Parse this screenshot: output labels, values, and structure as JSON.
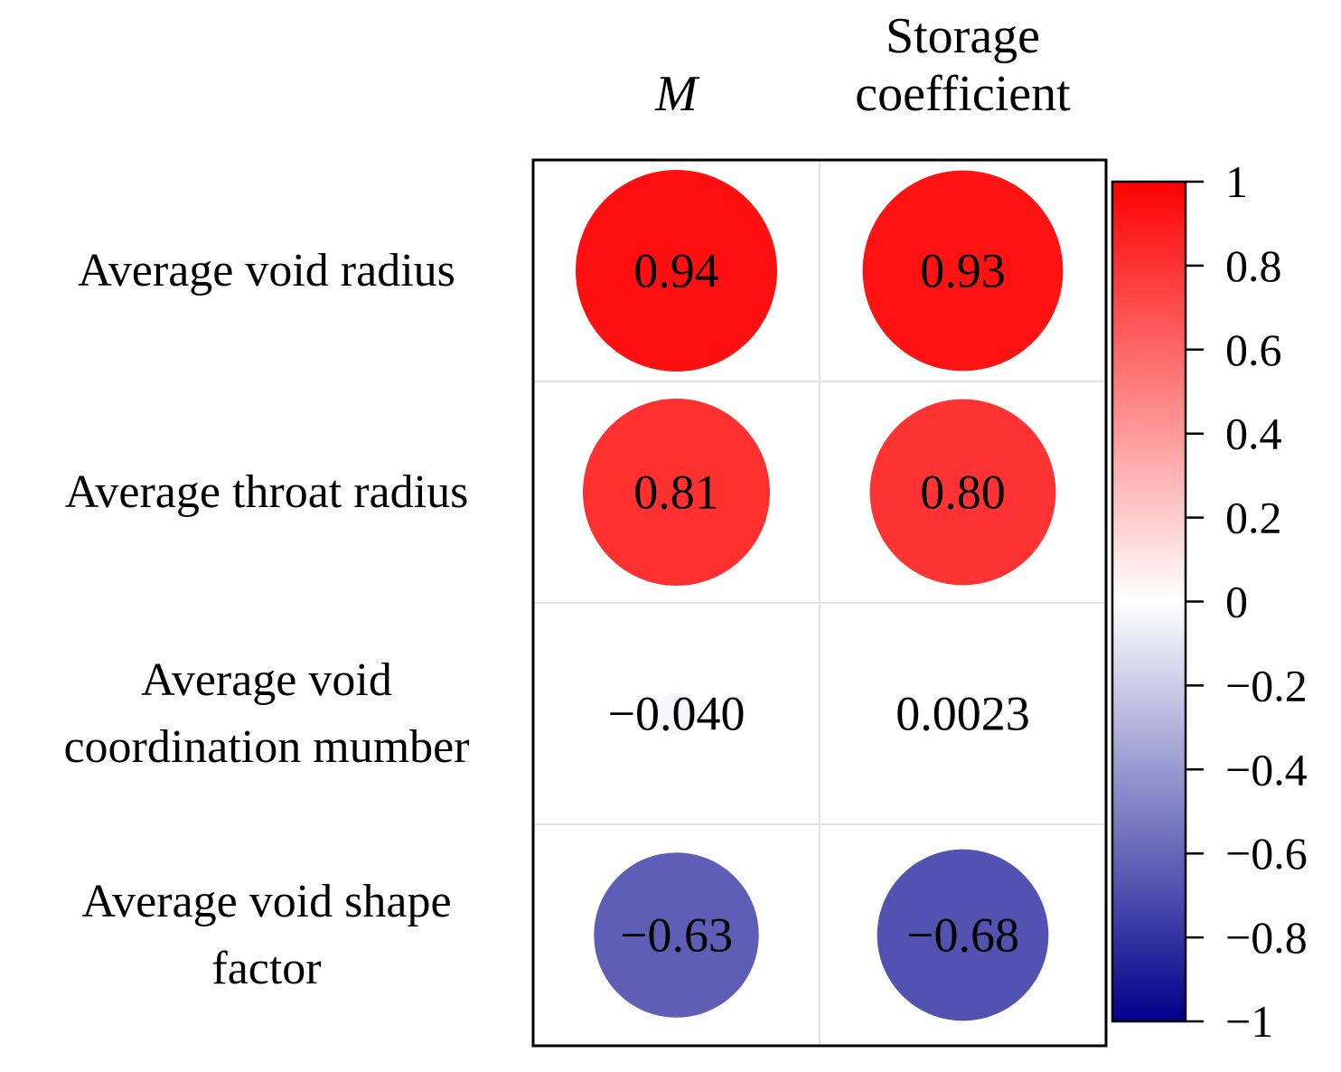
{
  "chart_data": {
    "type": "heatmap",
    "subtype": "correlation-circle-matrix",
    "columns": [
      {
        "lines": [
          "M"
        ],
        "italic": true
      },
      {
        "lines": [
          "Storage",
          "coefficient"
        ],
        "italic": false
      }
    ],
    "rows": [
      {
        "lines": [
          "Average void radius"
        ],
        "values": [
          0.94,
          0.93
        ],
        "labels": [
          "0.94",
          "0.93"
        ]
      },
      {
        "lines": [
          "Average throat radius"
        ],
        "values": [
          0.81,
          0.8
        ],
        "labels": [
          "0.81",
          "0.80"
        ]
      },
      {
        "lines": [
          "Average void",
          "coordination mumber"
        ],
        "values": [
          -0.04,
          0.0023
        ],
        "labels": [
          "−0.040",
          "0.0023"
        ]
      },
      {
        "lines": [
          "Average void shape",
          "factor"
        ],
        "values": [
          -0.63,
          -0.68
        ],
        "labels": [
          "−0.63",
          "−0.68"
        ]
      }
    ],
    "colorbar": {
      "range": [
        -1,
        1
      ],
      "ticks": [
        1,
        0.8,
        0.6,
        0.4,
        0.2,
        0,
        -0.2,
        -0.4,
        -0.6,
        -0.8,
        -1
      ],
      "tick_labels": [
        "1",
        "0.8",
        "0.6",
        "0.4",
        "0.2",
        "0",
        "−0.2",
        "−0.4",
        "−0.6",
        "−0.8",
        "−1"
      ],
      "colors": {
        "negative": "#00008B",
        "zero": "#FFFFFF",
        "positive": "#FF0000"
      }
    }
  }
}
